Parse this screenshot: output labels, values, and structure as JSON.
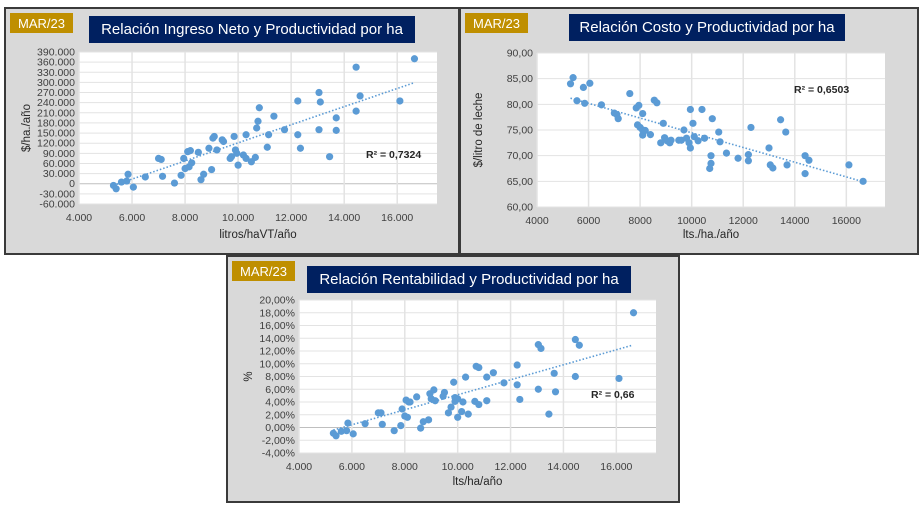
{
  "colors": {
    "badge": "#bf8f00",
    "title_bg": "#002060",
    "panel_bg": "#d9d9d9",
    "point": "#5b9bd5",
    "trend": "#5b9bd5"
  },
  "chart_data": [
    {
      "type": "scatter",
      "badge": "MAR/23",
      "title": "Relación Ingreso Neto y Productividad por ha",
      "xlabel": "litros/haVT/año",
      "ylabel": "$/ha./año",
      "xlim": [
        4000,
        17500
      ],
      "ylim": [
        -60000,
        390000
      ],
      "xticks": [
        4000,
        6000,
        8000,
        10000,
        12000,
        14000,
        16000
      ],
      "xtick_labels": [
        "4.000",
        "6.000",
        "8.000",
        "10.000",
        "12.000",
        "14.000",
        "16.000"
      ],
      "yticks": [
        -60000,
        -30000,
        0,
        30000,
        60000,
        90000,
        120000,
        150000,
        180000,
        210000,
        240000,
        270000,
        300000,
        330000,
        360000,
        390000
      ],
      "ytick_labels": [
        "-60.000",
        "-30.000",
        "0",
        "30.000",
        "60.000",
        "90.000",
        "120.000",
        "150.000",
        "180.000",
        "210.000",
        "240.000",
        "270.000",
        "300.000",
        "330.000",
        "360.000",
        "390.000"
      ],
      "grid": true,
      "r2_label": "R² = 0,7324",
      "trendline": {
        "x": [
          5300,
          16600
        ],
        "y": [
          -5000,
          298000
        ]
      },
      "points": [
        [
          5300,
          -5000
        ],
        [
          5400,
          -15000
        ],
        [
          5600,
          5000
        ],
        [
          5800,
          8000
        ],
        [
          5850,
          28000
        ],
        [
          6050,
          -10000
        ],
        [
          6500,
          20000
        ],
        [
          7000,
          75000
        ],
        [
          7100,
          72000
        ],
        [
          7150,
          22000
        ],
        [
          7600,
          2000
        ],
        [
          7850,
          25000
        ],
        [
          7950,
          75000
        ],
        [
          8000,
          45000
        ],
        [
          8100,
          95000
        ],
        [
          8150,
          50000
        ],
        [
          8200,
          98000
        ],
        [
          8250,
          62000
        ],
        [
          8500,
          93000
        ],
        [
          8600,
          12000
        ],
        [
          8700,
          28000
        ],
        [
          8900,
          105000
        ],
        [
          9000,
          42000
        ],
        [
          9050,
          135000
        ],
        [
          9100,
          140000
        ],
        [
          9200,
          100000
        ],
        [
          9400,
          130000
        ],
        [
          9450,
          125000
        ],
        [
          9700,
          75000
        ],
        [
          9750,
          80000
        ],
        [
          9850,
          140000
        ],
        [
          9900,
          100000
        ],
        [
          9950,
          90000
        ],
        [
          10000,
          55000
        ],
        [
          10200,
          85000
        ],
        [
          10300,
          75000
        ],
        [
          10300,
          145000
        ],
        [
          10500,
          65000
        ],
        [
          10650,
          78000
        ],
        [
          10750,
          185000
        ],
        [
          10700,
          165000
        ],
        [
          10800,
          225000
        ],
        [
          11100,
          108000
        ],
        [
          11150,
          145000
        ],
        [
          11350,
          200000
        ],
        [
          11750,
          160000
        ],
        [
          12250,
          245000
        ],
        [
          12250,
          145000
        ],
        [
          12350,
          105000
        ],
        [
          13050,
          160000
        ],
        [
          13050,
          270000
        ],
        [
          13100,
          242000
        ],
        [
          13450,
          80000
        ],
        [
          13700,
          158000
        ],
        [
          13700,
          195000
        ],
        [
          14450,
          215000
        ],
        [
          14450,
          345000
        ],
        [
          14600,
          260000
        ],
        [
          16100,
          245000
        ],
        [
          16650,
          370000
        ]
      ]
    },
    {
      "type": "scatter",
      "badge": "MAR/23",
      "title": "Relación Costo y Productividad por ha",
      "xlabel": "lts./ha./año",
      "ylabel": "$/litro de leche",
      "xlim": [
        4000,
        17500
      ],
      "ylim": [
        60,
        90
      ],
      "xticks": [
        4000,
        6000,
        8000,
        10000,
        12000,
        14000,
        16000
      ],
      "xtick_labels": [
        "4000",
        "6000",
        "8000",
        "10000",
        "12000",
        "14000",
        "16000"
      ],
      "yticks": [
        60,
        65,
        70,
        75,
        80,
        85,
        90
      ],
      "ytick_labels": [
        "60,00",
        "65,00",
        "70,00",
        "75,00",
        "80,00",
        "85,00",
        "90,00"
      ],
      "grid": true,
      "r2_label": "R² = 0,6503",
      "trendline": {
        "x": [
          5300,
          16600
        ],
        "y": [
          81.2,
          65.0
        ]
      },
      "points": [
        [
          5300,
          84
        ],
        [
          5400,
          85.2
        ],
        [
          5550,
          80.7
        ],
        [
          5800,
          83.3
        ],
        [
          5850,
          80.2
        ],
        [
          6050,
          84.1
        ],
        [
          6500,
          79.9
        ],
        [
          7000,
          78.3
        ],
        [
          7100,
          78
        ],
        [
          7150,
          77.2
        ],
        [
          7600,
          82.1
        ],
        [
          7850,
          79.3
        ],
        [
          7950,
          79.8
        ],
        [
          7900,
          76
        ],
        [
          8000,
          75.5
        ],
        [
          8100,
          78.2
        ],
        [
          8100,
          75
        ],
        [
          8100,
          74
        ],
        [
          8200,
          74.9
        ],
        [
          8400,
          74.1
        ],
        [
          8550,
          80.8
        ],
        [
          8650,
          80.3
        ],
        [
          8800,
          72.5
        ],
        [
          8900,
          76.3
        ],
        [
          8950,
          73.5
        ],
        [
          9050,
          72.9
        ],
        [
          9150,
          72.5
        ],
        [
          9200,
          73
        ],
        [
          9500,
          73
        ],
        [
          9600,
          73
        ],
        [
          9700,
          75
        ],
        [
          9800,
          73.4
        ],
        [
          9900,
          72.5
        ],
        [
          9950,
          71.5
        ],
        [
          9950,
          79
        ],
        [
          10050,
          76.3
        ],
        [
          10100,
          73.7
        ],
        [
          10250,
          72.9
        ],
        [
          10400,
          79
        ],
        [
          10500,
          73.4
        ],
        [
          10700,
          67.5
        ],
        [
          10750,
          68.5
        ],
        [
          10750,
          70
        ],
        [
          10800,
          77.2
        ],
        [
          11050,
          74.6
        ],
        [
          11100,
          72.7
        ],
        [
          11350,
          70.5
        ],
        [
          11800,
          69.5
        ],
        [
          12200,
          69
        ],
        [
          12200,
          70.2
        ],
        [
          12300,
          75.5
        ],
        [
          13000,
          71.5
        ],
        [
          13050,
          68.2
        ],
        [
          13150,
          67.6
        ],
        [
          13450,
          77
        ],
        [
          13650,
          74.6
        ],
        [
          13700,
          68.2
        ],
        [
          14400,
          70
        ],
        [
          14400,
          66.5
        ],
        [
          14550,
          69.1
        ],
        [
          16100,
          68.2
        ],
        [
          16650,
          65
        ]
      ]
    },
    {
      "type": "scatter",
      "badge": "MAR/23",
      "title": "Relación Rentabilidad y Productividad por ha",
      "xlabel": "lts/ha/año",
      "ylabel": "%",
      "xlim": [
        4000,
        17500
      ],
      "ylim": [
        -4,
        20
      ],
      "xticks": [
        4000,
        6000,
        8000,
        10000,
        12000,
        14000,
        16000
      ],
      "xtick_labels": [
        "4.000",
        "6.000",
        "8.000",
        "10.000",
        "12.000",
        "14.000",
        "16.000"
      ],
      "yticks": [
        -4,
        -2,
        0,
        2,
        4,
        6,
        8,
        10,
        12,
        14,
        16,
        18,
        20
      ],
      "ytick_labels": [
        "-4,00%",
        "-2,00%",
        "0,00%",
        "2,00%",
        "4,00%",
        "6,00%",
        "8,00%",
        "10,00%",
        "12,00%",
        "14,00%",
        "16,00%",
        "18,00%",
        "20,00%"
      ],
      "grid": true,
      "r2_label": "R² = 0,66",
      "trendline": {
        "x": [
          5300,
          16600
        ],
        "y": [
          -0.4,
          12.9
        ]
      },
      "points": [
        [
          5300,
          -0.9
        ],
        [
          5400,
          -1.3
        ],
        [
          5600,
          -0.6
        ],
        [
          5800,
          -0.5
        ],
        [
          5850,
          0.7
        ],
        [
          6050,
          -1
        ],
        [
          6500,
          0.6
        ],
        [
          7000,
          2.3
        ],
        [
          7100,
          2.3
        ],
        [
          7150,
          0.5
        ],
        [
          7600,
          -0.5
        ],
        [
          7850,
          0.3
        ],
        [
          7900,
          2.9
        ],
        [
          8000,
          1.8
        ],
        [
          8050,
          4.3
        ],
        [
          8100,
          1.6
        ],
        [
          8150,
          4
        ],
        [
          8200,
          4
        ],
        [
          8450,
          4.8
        ],
        [
          8600,
          -0.1
        ],
        [
          8700,
          0.9
        ],
        [
          8900,
          1.2
        ],
        [
          8950,
          5.3
        ],
        [
          9000,
          4.5
        ],
        [
          9100,
          5.9
        ],
        [
          9150,
          4.2
        ],
        [
          9450,
          4.9
        ],
        [
          9500,
          5.5
        ],
        [
          9650,
          2.3
        ],
        [
          9750,
          3.2
        ],
        [
          9850,
          7.1
        ],
        [
          9900,
          4.7
        ],
        [
          9900,
          4.1
        ],
        [
          10000,
          4.5
        ],
        [
          10000,
          1.6
        ],
        [
          10150,
          2.5
        ],
        [
          10200,
          4
        ],
        [
          10300,
          7.9
        ],
        [
          10400,
          2.1
        ],
        [
          10650,
          4.1
        ],
        [
          10700,
          9.6
        ],
        [
          10800,
          9.4
        ],
        [
          10800,
          3.6
        ],
        [
          11100,
          4.2
        ],
        [
          11100,
          7.9
        ],
        [
          11350,
          8.6
        ],
        [
          11750,
          7
        ],
        [
          12250,
          6.7
        ],
        [
          12250,
          9.8
        ],
        [
          12350,
          4.4
        ],
        [
          13050,
          6
        ],
        [
          13050,
          13
        ],
        [
          13150,
          12.4
        ],
        [
          13450,
          2.1
        ],
        [
          13650,
          8.5
        ],
        [
          13700,
          5.6
        ],
        [
          14450,
          8
        ],
        [
          14450,
          13.8
        ],
        [
          14600,
          12.9
        ],
        [
          16100,
          7.7
        ],
        [
          16650,
          18
        ]
      ]
    }
  ]
}
